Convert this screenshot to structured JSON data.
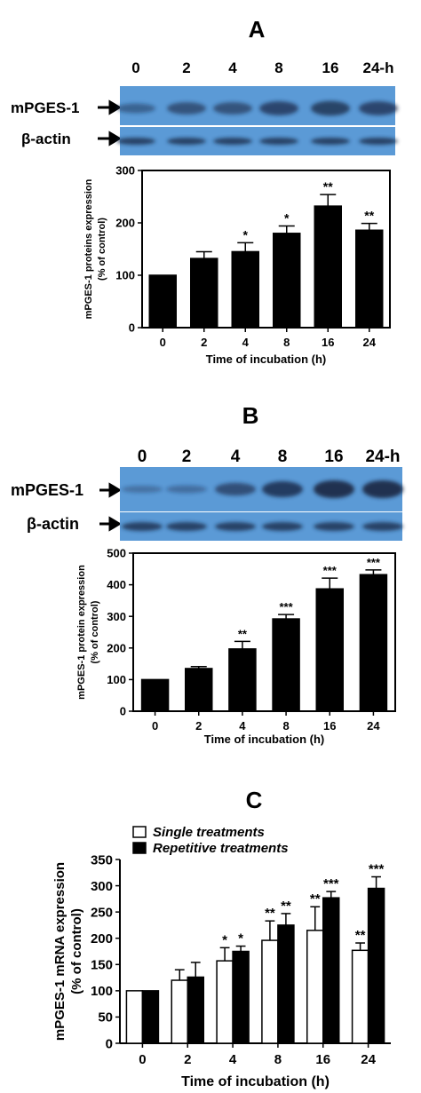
{
  "panel_a": {
    "letter": "A",
    "blot_times": [
      "0",
      "2",
      "4",
      "8",
      "16",
      "24-h"
    ],
    "blot_labels": [
      "mPGES-1",
      "β-actin"
    ],
    "blot_target_intensity": [
      0.35,
      0.55,
      0.55,
      0.7,
      0.75,
      0.7
    ],
    "blot_colors": {
      "background": "#5b9ad6",
      "band": "#1a2a4a"
    }
  },
  "panel_b": {
    "letter": "B",
    "blot_times": [
      "0",
      "2",
      "4",
      "8",
      "16",
      "24-h"
    ],
    "blot_labels": [
      "mPGES-1",
      "β-actin"
    ],
    "blot_target_intensity": [
      0.15,
      0.2,
      0.6,
      0.85,
      1.0,
      1.0
    ],
    "blot_colors": {
      "background": "#5b9ad6",
      "band": "#1a2a4a"
    }
  },
  "panel_c": {
    "letter": "C"
  },
  "chart_data": [
    {
      "type": "bar",
      "panel": "A",
      "categories": [
        "0",
        "2",
        "4",
        "8",
        "16",
        "24"
      ],
      "values": [
        100,
        132,
        145,
        180,
        232,
        186
      ],
      "errors": [
        0,
        13,
        17,
        14,
        22,
        13
      ],
      "significance": [
        "",
        "",
        "*",
        "*",
        "**",
        "**"
      ],
      "xlabel": "Time of incubation (h)",
      "ylabel": [
        "mPGES-1 proteins expression",
        "(% of control)"
      ],
      "ylim": [
        0,
        300
      ],
      "yticks": [
        0,
        100,
        200,
        300
      ],
      "colors": {
        "bar": "#000000"
      }
    },
    {
      "type": "bar",
      "panel": "B",
      "categories": [
        "0",
        "2",
        "4",
        "8",
        "16",
        "24"
      ],
      "values": [
        100,
        135,
        197,
        292,
        387,
        432
      ],
      "errors": [
        0,
        6,
        24,
        14,
        34,
        15
      ],
      "significance": [
        "",
        "",
        "**",
        "***",
        "***",
        "***"
      ],
      "xlabel": "Time of incubation (h)",
      "ylabel": [
        "mPGES-1 protein expression",
        "(% of control)"
      ],
      "ylim": [
        0,
        500
      ],
      "yticks": [
        0,
        100,
        200,
        300,
        400,
        500
      ],
      "colors": {
        "bar": "#000000"
      }
    },
    {
      "type": "bar",
      "panel": "C",
      "categories": [
        "0",
        "2",
        "4",
        "8",
        "16",
        "24"
      ],
      "series": [
        {
          "name": "Single treatments",
          "values": [
            100,
            120,
            157,
            196,
            215,
            177
          ],
          "errors": [
            0,
            20,
            25,
            37,
            45,
            14
          ],
          "significance": [
            "",
            "",
            "*",
            "**",
            "**",
            "**"
          ],
          "color": "#ffffff"
        },
        {
          "name": "Repetitive treatments",
          "values": [
            100,
            126,
            175,
            225,
            277,
            295
          ],
          "errors": [
            0,
            28,
            10,
            22,
            12,
            22
          ],
          "significance": [
            "",
            "",
            "*",
            "**",
            "***",
            "***"
          ],
          "color": "#000000"
        }
      ],
      "xlabel": "Time of incubation (h)",
      "ylabel": [
        "mPGES-1 mRNA expression",
        "(% of control)"
      ],
      "ylim": [
        0,
        350
      ],
      "yticks": [
        0,
        50,
        100,
        150,
        200,
        250,
        300,
        350
      ],
      "legend": "top-left"
    }
  ]
}
